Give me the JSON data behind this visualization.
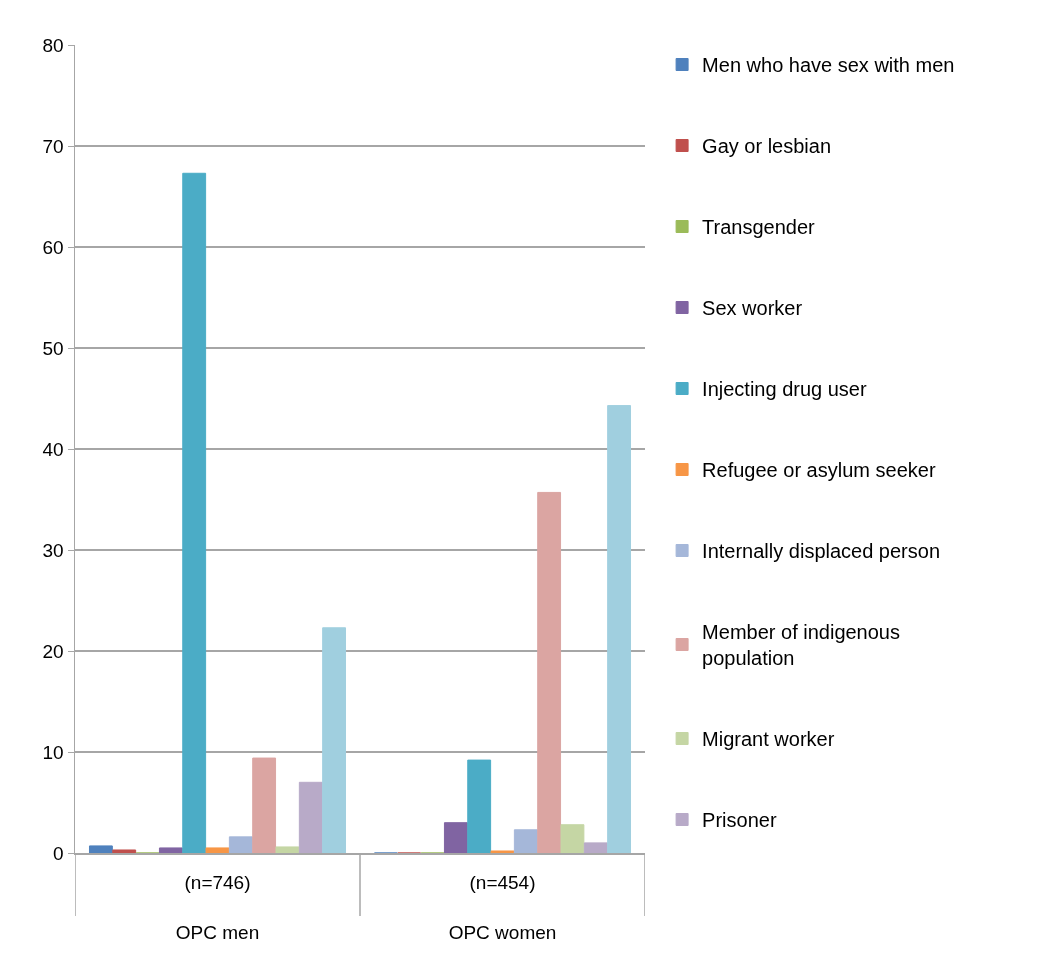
{
  "chart_data": {
    "type": "bar",
    "categories": [
      "(n=746)\nOPC men",
      "(n=454)\nOPC women"
    ],
    "series": [
      {
        "name": "Men who have sex with men",
        "color": "#4f81bd",
        "values": [
          0.7,
          0
        ]
      },
      {
        "name": "Gay or lesbian",
        "color": "#c0504d",
        "values": [
          0.3,
          0
        ]
      },
      {
        "name": "Transgender",
        "color": "#9bbb59",
        "values": [
          0,
          0
        ]
      },
      {
        "name": "Sex worker",
        "color": "#8064a2",
        "values": [
          0.5,
          3.0
        ]
      },
      {
        "name": "Injecting drug user",
        "color": "#4bacc6",
        "values": [
          67.3,
          9.2
        ]
      },
      {
        "name": "Refugee or asylum seeker",
        "color": "#f79646",
        "values": [
          0.5,
          0.2
        ]
      },
      {
        "name": "Internally displaced person",
        "color": "#a5b7d9",
        "values": [
          1.6,
          2.3
        ]
      },
      {
        "name": "Member of indigenous population",
        "color": "#dba5a2",
        "values": [
          9.4,
          35.7
        ]
      },
      {
        "name": "Migrant worker",
        "color": "#c5d6a4",
        "values": [
          0.6,
          2.8
        ]
      },
      {
        "name": "Prisoner",
        "color": "#b8aac8",
        "values": [
          7.0,
          1.0
        ]
      },
      {
        "color": "#a0cfdf",
        "values": [
          22.3,
          44.3
        ]
      }
    ],
    "ylim": [
      0,
      80
    ],
    "yticks": [
      0,
      10,
      20,
      30,
      40,
      50,
      60,
      70,
      80
    ],
    "grid": "y",
    "legend": "right"
  }
}
